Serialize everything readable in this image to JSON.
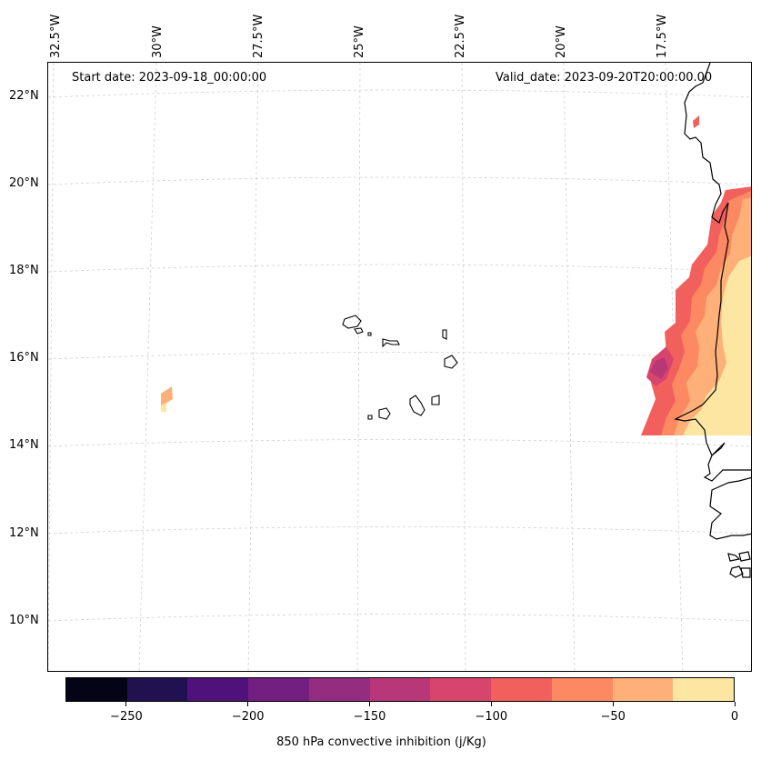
{
  "map": {
    "start_date": "Start date: 2023-09-18_00:00:00",
    "valid_date": "Valid_date: 2023-09-20T20:00:00.00",
    "lon_labels": [
      "32.5°W",
      "30°W",
      "27.5°W",
      "25°W",
      "22.5°W",
      "20°W",
      "17.5°W"
    ],
    "lat_labels": [
      "22°N",
      "20°N",
      "18°N",
      "16°N",
      "14°N",
      "12°N",
      "10°N"
    ],
    "grid": "dashed graticule",
    "coastline_color": "#000000",
    "regions": [
      "Cape Verde islands",
      "West African coast (Mauritania, Senegal, Gambia, Guinea-Bissau)"
    ]
  },
  "colorbar": {
    "title": "850 hPa convective inhibition (j/Kg)",
    "min": -275,
    "max": 0,
    "step": 25,
    "tick_labels": [
      "−250",
      "−200",
      "−150",
      "−100",
      "−50",
      "0"
    ],
    "tick_values": [
      -250,
      -200,
      -150,
      -100,
      -50,
      0
    ],
    "colors": [
      "#050416",
      "#221150",
      "#4f127b",
      "#721f81",
      "#942c80",
      "#b73779",
      "#d8456c",
      "#f1605d",
      "#fc8961",
      "#feb078",
      "#fde5a2"
    ]
  },
  "chart_data": {
    "type": "heatmap",
    "title": "",
    "variable": "850 hPa convective inhibition",
    "units": "j/Kg",
    "x_range_lon_w": [
      32.5,
      16.0
    ],
    "y_range_lat_n": [
      9.0,
      22.5
    ],
    "levels": [
      -275,
      -250,
      -225,
      -200,
      -175,
      -150,
      -125,
      -100,
      -75,
      -50,
      -25,
      0
    ]
  }
}
